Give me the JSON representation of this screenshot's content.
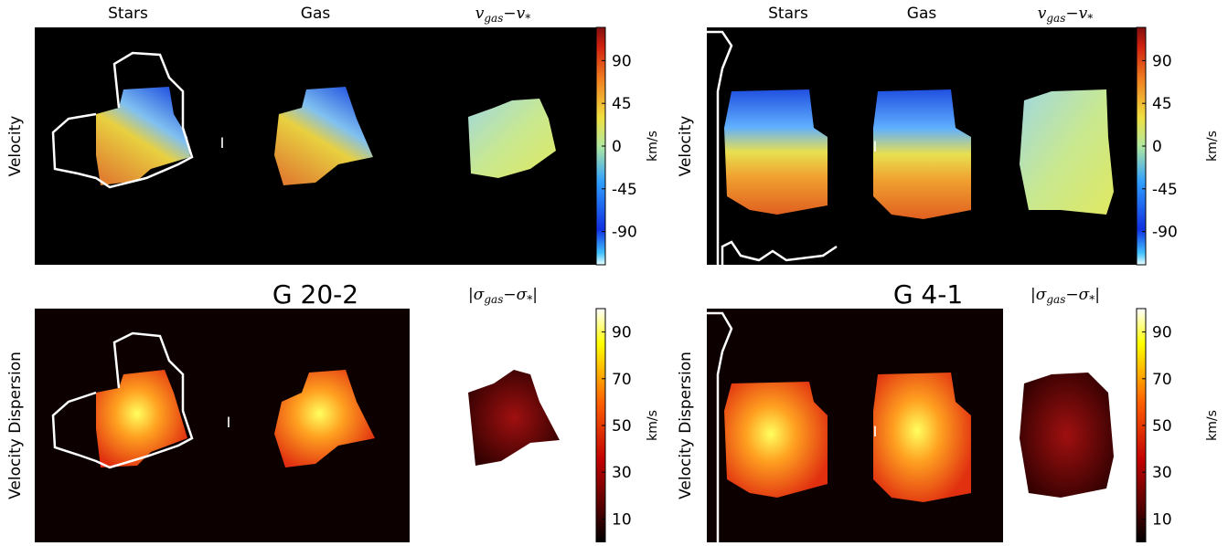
{
  "figures": [
    {
      "name": "G 20-2",
      "column_titles": [
        "Stars",
        "Gas"
      ],
      "velocity_title": [
        "v",
        "gas",
        "−v",
        "*"
      ],
      "dispersion_title": [
        "|σ",
        "gas",
        "−σ",
        "*",
        "|"
      ],
      "row_labels": [
        "Velocity",
        "Velocity Dispersion"
      ],
      "velocity_colorbar": {
        "label": "km/s",
        "ylim": [
          -125,
          125
        ],
        "yticks": [
          90,
          45,
          0,
          -45,
          -90
        ]
      },
      "dispersion_colorbar": {
        "label": "km/s",
        "ylim": [
          0,
          100
        ],
        "yticks": [
          10,
          30,
          50,
          70,
          90
        ]
      }
    },
    {
      "name": "G 4-1",
      "column_titles": [
        "Stars",
        "Gas"
      ],
      "velocity_title": [
        "v",
        "gas",
        "−v",
        "*"
      ],
      "dispersion_title": [
        "|σ",
        "gas",
        "−σ",
        "*",
        "|"
      ],
      "row_labels": [
        "Velocity",
        "Velocity Dispersion"
      ],
      "velocity_colorbar": {
        "label": "km/s",
        "ylim": [
          -125,
          125
        ],
        "yticks": [
          90,
          45,
          0,
          -45,
          -90
        ]
      },
      "dispersion_colorbar": {
        "label": "km/s",
        "ylim": [
          0,
          100
        ],
        "yticks": [
          10,
          30,
          50,
          70,
          90
        ]
      }
    }
  ]
}
